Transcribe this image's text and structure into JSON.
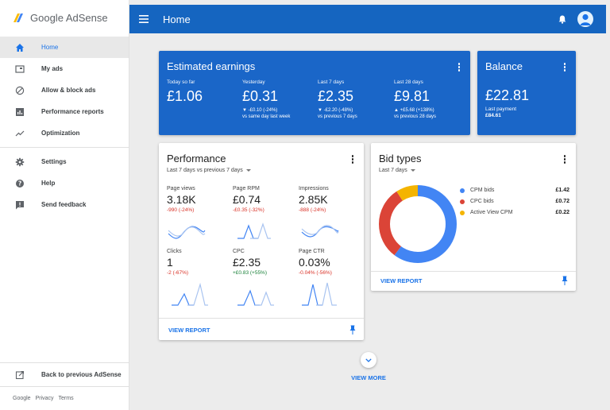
{
  "app": {
    "name": "Google AdSense"
  },
  "sidebar": {
    "items": [
      {
        "label": "Home",
        "icon": "home-icon"
      },
      {
        "label": "My ads",
        "icon": "ads-icon"
      },
      {
        "label": "Allow & block ads",
        "icon": "block-icon"
      },
      {
        "label": "Performance reports",
        "icon": "bar-chart-icon"
      },
      {
        "label": "Optimization",
        "icon": "trending-up-icon"
      },
      {
        "label": "Settings",
        "icon": "gear-icon"
      },
      {
        "label": "Help",
        "icon": "help-icon"
      },
      {
        "label": "Send feedback",
        "icon": "feedback-icon"
      }
    ],
    "back_label": "Back to previous AdSense",
    "footer": {
      "brand": "Google",
      "privacy": "Privacy",
      "terms": "Terms"
    }
  },
  "header": {
    "title": "Home"
  },
  "earnings": {
    "title": "Estimated earnings",
    "today": {
      "caption": "Today so far",
      "value": "£1.06"
    },
    "yesterday": {
      "caption": "Yesterday",
      "value": "£0.31",
      "delta": "▼ -£0.10 (-24%)",
      "compare": "vs same day last week"
    },
    "last7": {
      "caption": "Last 7 days",
      "value": "£2.35",
      "delta": "▼ -£2.20 (-48%)",
      "compare": "vs previous 7 days"
    },
    "last28": {
      "caption": "Last 28 days",
      "value": "£9.81",
      "delta": "▲ +£5.68 (+138%)",
      "compare": "vs previous 28 days"
    }
  },
  "balance": {
    "title": "Balance",
    "value": "£22.81",
    "last_payment_label": "Last payment",
    "last_payment_value": "£84.61"
  },
  "performance": {
    "title": "Performance",
    "range": "Last 7 days vs previous 7 days",
    "metrics": [
      {
        "caption": "Page views",
        "value": "3.18K",
        "delta": "-990 (-24%)",
        "trend": "neg"
      },
      {
        "caption": "Page RPM",
        "value": "£0.74",
        "delta": "-£0.35 (-32%)",
        "trend": "neg"
      },
      {
        "caption": "Impressions",
        "value": "2.85K",
        "delta": "-888 (-24%)",
        "trend": "neg"
      },
      {
        "caption": "Clicks",
        "value": "1",
        "delta": "-2 (-67%)",
        "trend": "neg"
      },
      {
        "caption": "CPC",
        "value": "£2.35",
        "delta": "+£0.83 (+55%)",
        "trend": "pos"
      },
      {
        "caption": "Page CTR",
        "value": "0.03%",
        "delta": "-0.04% (-56%)",
        "trend": "neg"
      }
    ],
    "view_report": "VIEW REPORT"
  },
  "bid_types": {
    "title": "Bid types",
    "range": "Last 7 days",
    "items": [
      {
        "label": "CPM bids",
        "amount": "£1.42",
        "value": 1.42,
        "color": "#4285f4"
      },
      {
        "label": "CPC bids",
        "amount": "£0.72",
        "value": 0.72,
        "color": "#db4437"
      },
      {
        "label": "Active View CPM",
        "amount": "£0.22",
        "value": 0.22,
        "color": "#f4b400"
      }
    ],
    "view_report": "VIEW REPORT"
  },
  "view_more": "VIEW MORE",
  "colors": {
    "header": "#1565c0",
    "card_blue": "#1a66c8",
    "accent": "#1a73e8"
  }
}
